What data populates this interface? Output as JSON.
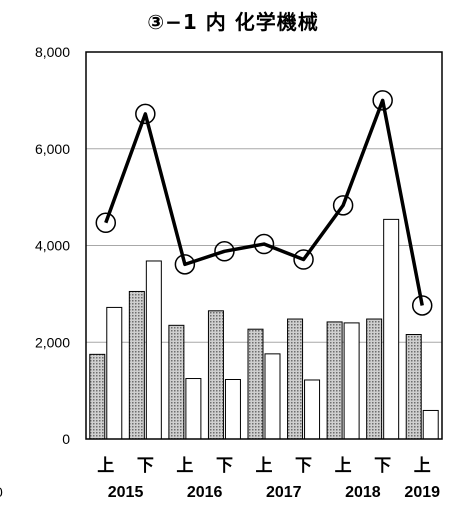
{
  "chart_data": {
    "type": "bar",
    "title": "③−1 内 化学機械",
    "categories": [
      "上",
      "下",
      "上",
      "下",
      "上",
      "下",
      "上",
      "下",
      "上"
    ],
    "years": [
      "2015",
      "2016",
      "2017",
      "2018",
      "2019"
    ],
    "ylim": [
      0,
      8000
    ],
    "yticks": [
      "0",
      "2,000",
      "4,000",
      "6,000",
      "8,000"
    ],
    "grid": true,
    "series": [
      {
        "type": "bar",
        "pattern": "dotted",
        "values": [
          1750,
          3050,
          2350,
          2650,
          2270,
          2480,
          2420,
          2480,
          2160
        ]
      },
      {
        "type": "bar",
        "pattern": "white",
        "values": [
          2720,
          3680,
          1250,
          1230,
          1760,
          1220,
          2400,
          4540,
          590
        ]
      },
      {
        "type": "line",
        "marker": "open-circle",
        "values": [
          4470,
          6720,
          3610,
          3880,
          4030,
          3710,
          4830,
          7000,
          2760
        ]
      }
    ],
    "stray_label": "0"
  }
}
